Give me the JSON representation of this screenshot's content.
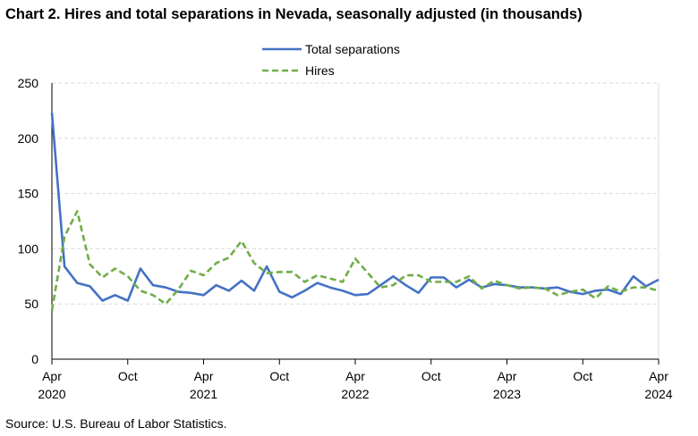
{
  "page": {
    "title": "Chart 2. Hires and total separations in Nevada, seasonally adjusted (in thousands)",
    "source": "Source: U.S. Bureau of Labor Statistics."
  },
  "chart_data": {
    "type": "line",
    "title": "Chart 2. Hires and total separations in Nevada, seasonally adjusted (in thousands)",
    "xlabel": "",
    "ylabel": "",
    "ylim": [
      0,
      250
    ],
    "yticks": [
      0,
      50,
      100,
      150,
      200,
      250
    ],
    "grid": true,
    "legend_position": "top-center",
    "x_tick_labels": [
      {
        "index": 0,
        "month": "Apr",
        "year": "2020"
      },
      {
        "index": 6,
        "month": "Oct",
        "year": ""
      },
      {
        "index": 12,
        "month": "Apr",
        "year": "2021"
      },
      {
        "index": 18,
        "month": "Oct",
        "year": ""
      },
      {
        "index": 24,
        "month": "Apr",
        "year": "2022"
      },
      {
        "index": 30,
        "month": "Oct",
        "year": ""
      },
      {
        "index": 36,
        "month": "Apr",
        "year": "2023"
      },
      {
        "index": 42,
        "month": "Oct",
        "year": ""
      },
      {
        "index": 48,
        "month": "Apr",
        "year": "2024"
      }
    ],
    "x": [
      "2020-04",
      "2020-05",
      "2020-06",
      "2020-07",
      "2020-08",
      "2020-09",
      "2020-10",
      "2020-11",
      "2020-12",
      "2021-01",
      "2021-02",
      "2021-03",
      "2021-04",
      "2021-05",
      "2021-06",
      "2021-07",
      "2021-08",
      "2021-09",
      "2021-10",
      "2021-11",
      "2021-12",
      "2022-01",
      "2022-02",
      "2022-03",
      "2022-04",
      "2022-05",
      "2022-06",
      "2022-07",
      "2022-08",
      "2022-09",
      "2022-10",
      "2022-11",
      "2022-12",
      "2023-01",
      "2023-02",
      "2023-03",
      "2023-04",
      "2023-05",
      "2023-06",
      "2023-07",
      "2023-08",
      "2023-09",
      "2023-10",
      "2023-11",
      "2023-12",
      "2024-01",
      "2024-02",
      "2024-03",
      "2024-04"
    ],
    "series": [
      {
        "name": "Total separations",
        "color": "#4472C4",
        "style": "solid",
        "values": [
          223,
          84,
          69,
          66,
          53,
          58,
          53,
          82,
          67,
          65,
          61,
          60,
          58,
          67,
          62,
          71,
          62,
          84,
          61,
          56,
          62,
          69,
          65,
          62,
          58,
          59,
          67,
          75,
          67,
          60,
          74,
          74,
          65,
          72,
          65,
          68,
          67,
          65,
          65,
          64,
          65,
          61,
          59,
          62,
          63,
          59,
          75,
          66,
          72
        ]
      },
      {
        "name": "Hires",
        "color": "#70AD47",
        "style": "dashed",
        "values": [
          44,
          111,
          134,
          86,
          74,
          82,
          75,
          62,
          58,
          50,
          63,
          80,
          76,
          87,
          92,
          107,
          87,
          78,
          79,
          79,
          70,
          76,
          73,
          70,
          91,
          78,
          65,
          67,
          76,
          76,
          70,
          70,
          70,
          75,
          64,
          71,
          67,
          64,
          65,
          64,
          58,
          61,
          63,
          55,
          66,
          61,
          65,
          65,
          62
        ]
      }
    ]
  }
}
